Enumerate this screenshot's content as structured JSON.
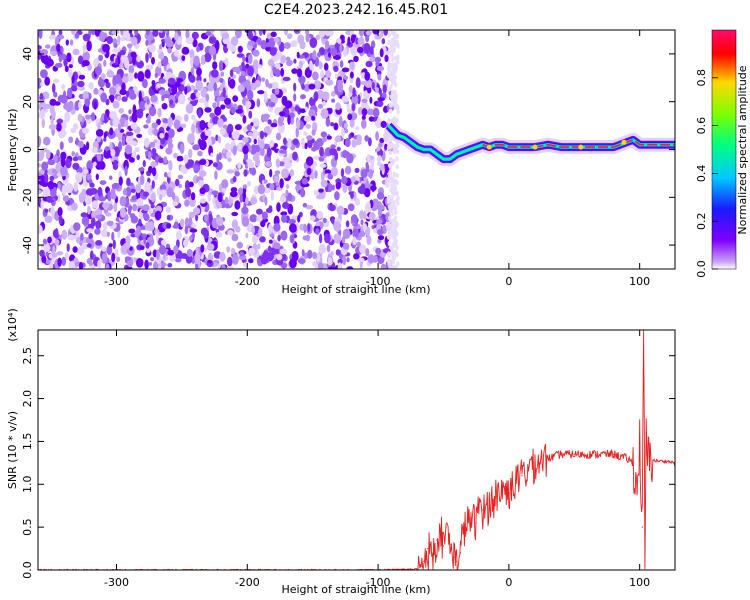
{
  "figure_title": "C2E4.2023.242.16.45.R01",
  "chart_data": [
    {
      "type": "heatmap",
      "title": "",
      "xlabel": "Height of straight line (km)",
      "ylabel": "Frequency (Hz)",
      "xlim": [
        -360,
        127
      ],
      "ylim": [
        -50,
        50
      ],
      "xticks": [
        -300,
        -200,
        -100,
        0,
        100
      ],
      "yticks": [
        -40,
        -20,
        0,
        20,
        40
      ],
      "noise_region_x": [
        -360,
        -90
      ],
      "colorbar": {
        "label": "Normalized spectral amplitude",
        "range": [
          0.0,
          1.0
        ],
        "ticks": [
          "0.0",
          "0.2",
          "0.4",
          "0.6",
          "0.8"
        ],
        "colors": [
          "#ffffff",
          "#c9a2f5",
          "#7f00ff",
          "#1a1aff",
          "#00c8ff",
          "#00ff7f",
          "#7fff00",
          "#ffd700",
          "#ff0000",
          "#ff0a6e"
        ]
      },
      "signal_trace": {
        "x": [
          -92,
          -85,
          -80,
          -75,
          -70,
          -65,
          -60,
          -55,
          -50,
          -45,
          -40,
          -35,
          -30,
          -25,
          -20,
          -15,
          -10,
          -5,
          0,
          10,
          20,
          30,
          40,
          50,
          60,
          70,
          80,
          85,
          90,
          95,
          100,
          105,
          110,
          115,
          120,
          127
        ],
        "y": [
          10,
          6,
          5,
          3,
          1,
          0,
          0,
          -2,
          -4,
          -4,
          -2,
          -1,
          0,
          1,
          2,
          1,
          2,
          2,
          1,
          1,
          1,
          2,
          1,
          1,
          1,
          1,
          1,
          2,
          3,
          4,
          2,
          2,
          2,
          2,
          2,
          2
        ]
      }
    },
    {
      "type": "line",
      "title": "",
      "xlabel": "Height of straight line (km)",
      "ylabel": "SNR (10 * v/v)",
      "y_multiplier": "(x10⁴)",
      "xlim": [
        -360,
        127
      ],
      "ylim": [
        0,
        2.8
      ],
      "xticks": [
        -300,
        -200,
        -100,
        0,
        100
      ],
      "yticks": [
        "0.0",
        "0.5",
        "1.0",
        "1.5",
        "2.0",
        "2.5"
      ],
      "line_color": "#e82020",
      "series": [
        {
          "x": [
            -360,
            -100,
            -70,
            -65,
            -62,
            -58,
            -55,
            -52,
            -50,
            -48,
            -45,
            -42,
            -40,
            -37,
            -35,
            -30,
            -25,
            -22,
            -20,
            -15,
            -10,
            -5,
            0,
            5,
            10,
            15,
            20,
            25,
            30,
            40,
            50,
            60,
            70,
            80,
            90,
            95,
            98,
            100,
            102,
            103,
            104,
            105,
            106,
            110,
            115,
            120,
            127
          ],
          "y": [
            0.0,
            0.0,
            0.01,
            0.1,
            0.25,
            0.2,
            0.35,
            0.45,
            0.28,
            0.5,
            0.3,
            0.15,
            0.1,
            0.2,
            0.45,
            0.6,
            0.55,
            0.8,
            0.7,
            0.75,
            0.85,
            0.95,
            0.9,
            1.05,
            1.1,
            1.2,
            1.25,
            1.3,
            1.3,
            1.35,
            1.35,
            1.35,
            1.35,
            1.35,
            1.3,
            1.25,
            0.9,
            1.5,
            0.5,
            2.8,
            0.05,
            1.6,
            1.3,
            1.28,
            1.27,
            1.27,
            1.25
          ]
        }
      ]
    }
  ]
}
